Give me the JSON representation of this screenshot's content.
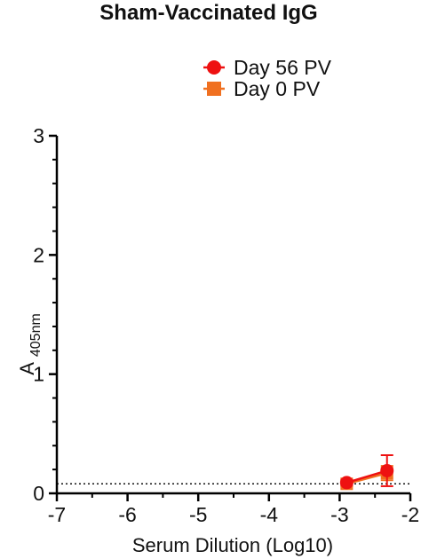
{
  "chart_data": {
    "type": "scatter",
    "title": "Sham-Vaccinated IgG",
    "xlabel": "Serum Dilution (Log10)",
    "ylabel_main": "A",
    "ylabel_sub": "405nm",
    "xlim": [
      -7,
      -2
    ],
    "ylim": [
      0,
      3
    ],
    "x_ticks": [
      -7,
      -6,
      -5,
      -4,
      -3,
      -2
    ],
    "x_tick_labels": [
      "-7",
      "-6",
      "-5",
      "-4",
      "-3",
      "-2"
    ],
    "y_ticks": [
      0,
      1,
      2,
      3
    ],
    "y_tick_labels": [
      "0",
      "1",
      "2",
      "3"
    ],
    "threshold_y": 0.08,
    "legend_position": "top-right",
    "series": [
      {
        "name": "Day 56 PV",
        "marker": "circle",
        "color": "#ee1111",
        "x": [
          -2.9,
          -2.33
        ],
        "y": [
          0.09,
          0.19
        ],
        "err_up": [
          0.02,
          0.13
        ],
        "err_down": [
          0.02,
          0.13
        ]
      },
      {
        "name": "Day 0 PV",
        "marker": "square",
        "color": "#f07020",
        "x": [
          -2.9,
          -2.33
        ],
        "y": [
          0.08,
          0.17
        ],
        "err_up": [
          0.02,
          0.06
        ],
        "err_down": [
          0.02,
          0.06
        ]
      }
    ]
  }
}
